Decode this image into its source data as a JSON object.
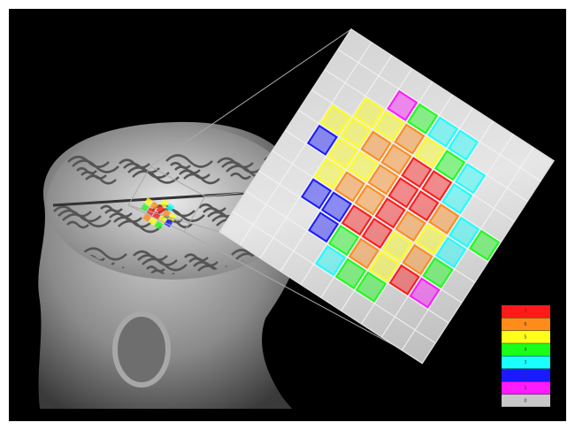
{
  "legend": {
    "items": [
      {
        "label": "7",
        "color": "#ff1a1a"
      },
      {
        "label": "6",
        "color": "#ff8c1a"
      },
      {
        "label": "5",
        "color": "#ffff1a"
      },
      {
        "label": "4",
        "color": "#1aff1a"
      },
      {
        "label": "3",
        "color": "#1affff"
      },
      {
        "label": "2",
        "color": "#1a1aff"
      },
      {
        "label": "1",
        "color": "#ff1aff"
      },
      {
        "label": "0",
        "color": "#c8c8c8"
      }
    ]
  }
}
